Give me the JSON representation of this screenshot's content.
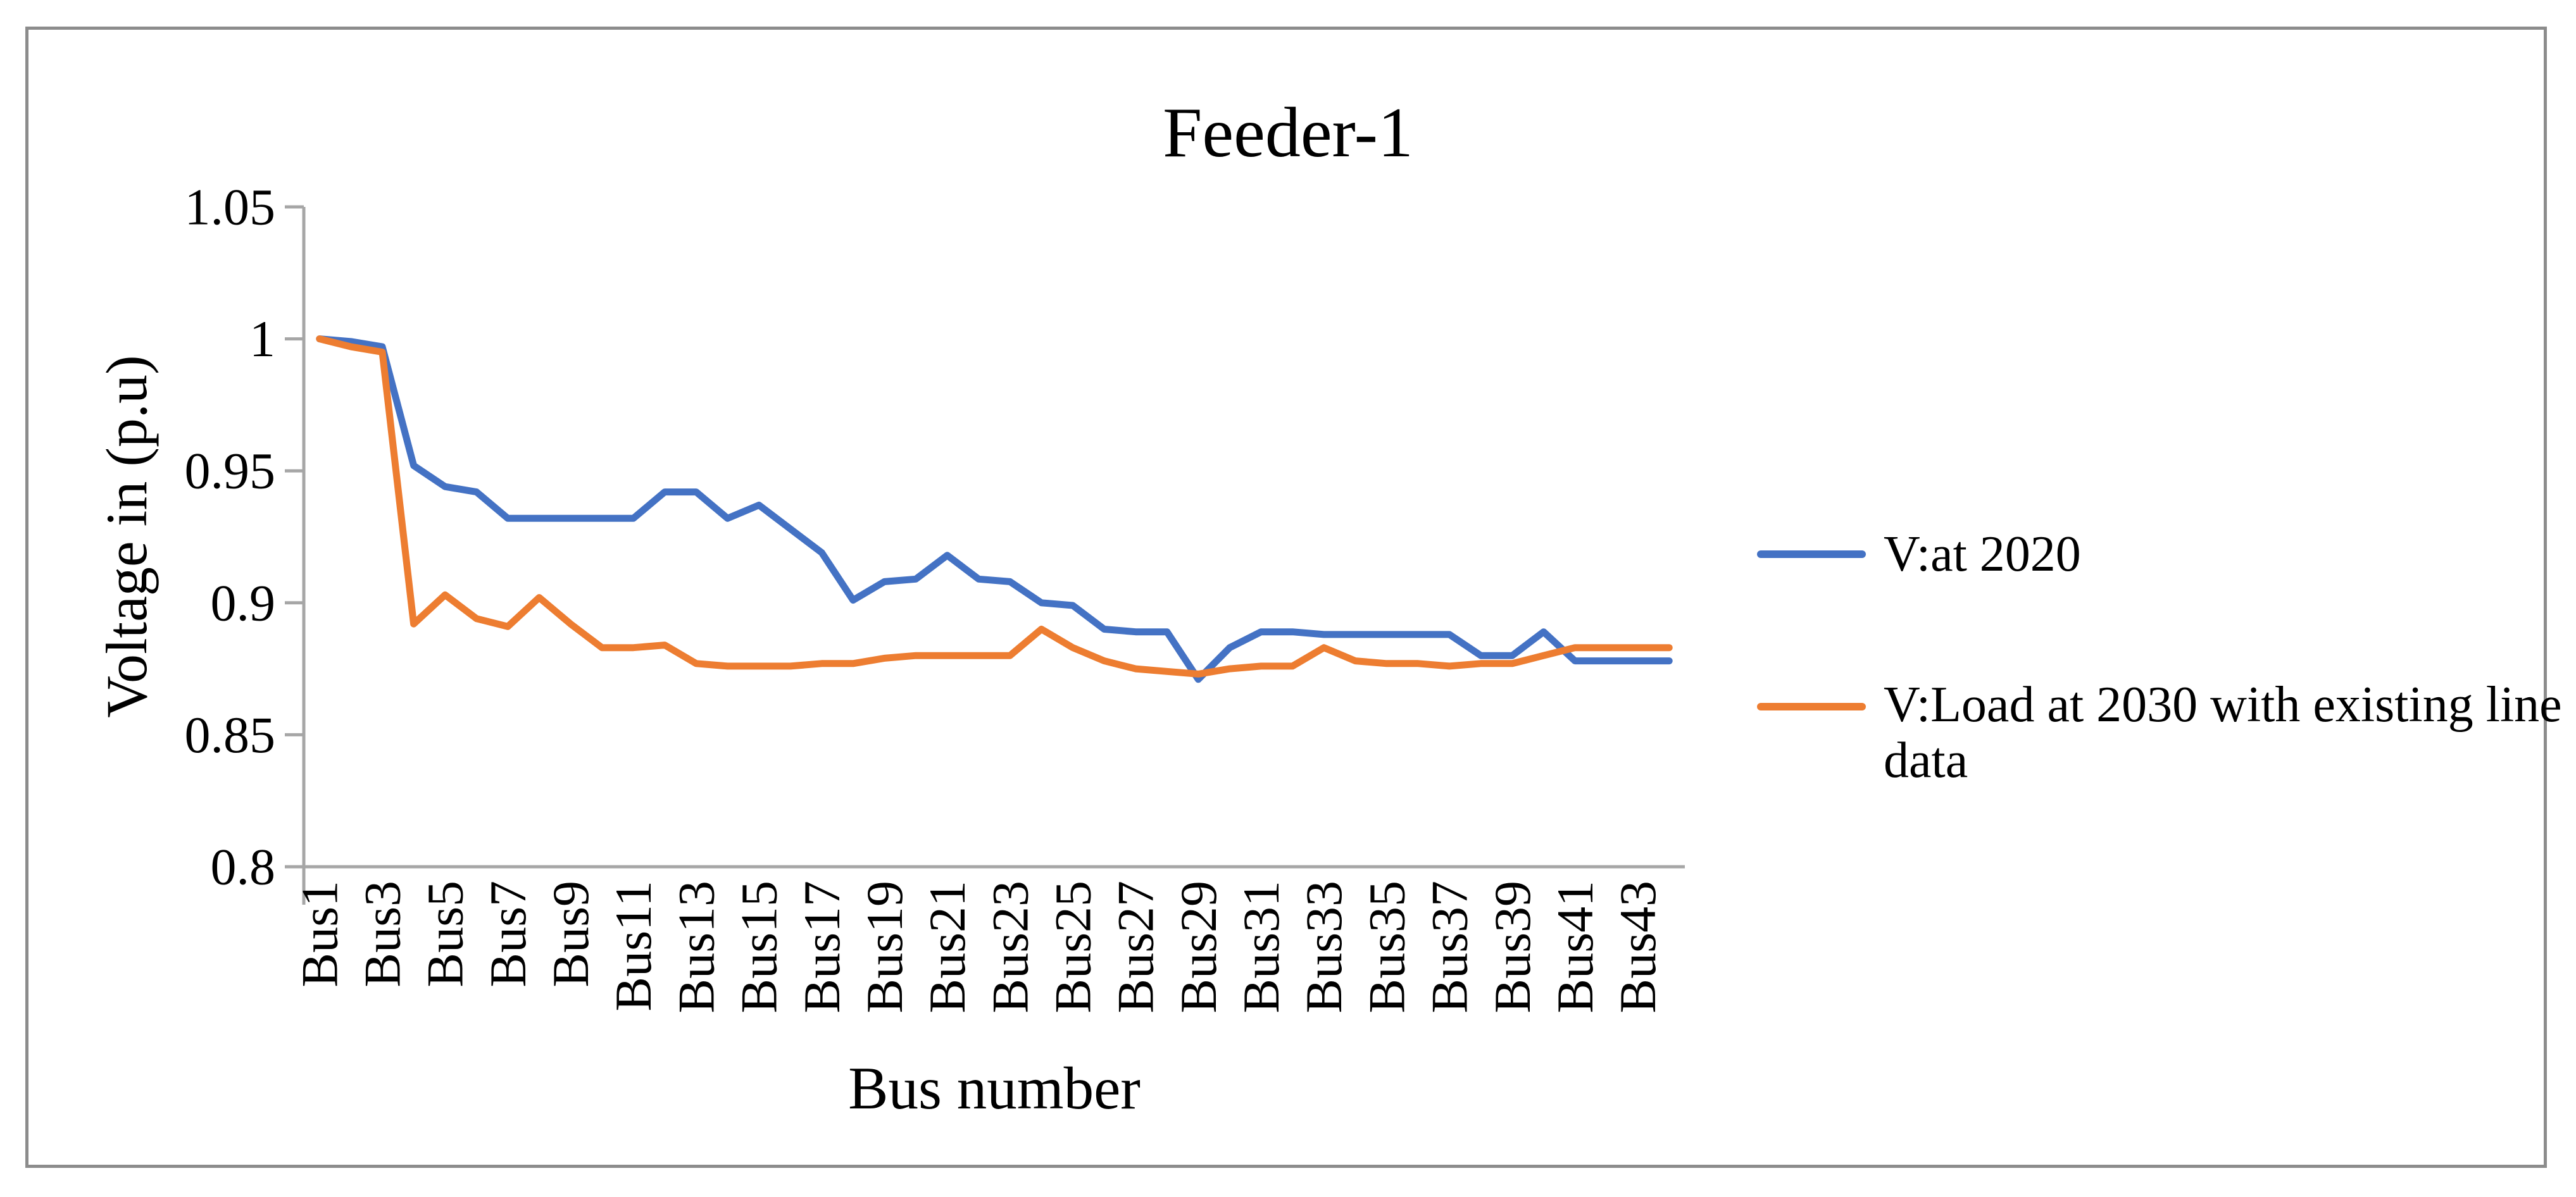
{
  "figure": {
    "border_color": "#8c8c8c",
    "background": "#ffffff"
  },
  "chart_data": {
    "type": "line",
    "title": "Feeder-1",
    "xlabel": "Bus number",
    "ylabel": "Voltage in (p.u)",
    "ylim": [
      0.8,
      1.05
    ],
    "ytick_values": [
      1.05,
      1,
      0.95,
      0.9,
      0.85,
      0.8
    ],
    "ytick_labels": [
      "1.05",
      "1",
      "0.95",
      "0.9",
      "0.85",
      "0.8"
    ],
    "xtick_labels": [
      "Bus1",
      "Bus3",
      "Bus5",
      "Bus7",
      "Bus9",
      "Bus11",
      "Bus13",
      "Bus15",
      "Bus17",
      "Bus19",
      "Bus21",
      "Bus23",
      "Bus25",
      "Bus27",
      "Bus29",
      "Bus31",
      "Bus33",
      "Bus35",
      "Bus37",
      "Bus39",
      "Bus41",
      "Bus43"
    ],
    "x": [
      1,
      2,
      3,
      4,
      5,
      6,
      7,
      8,
      9,
      10,
      11,
      12,
      13,
      14,
      15,
      16,
      17,
      18,
      19,
      20,
      21,
      22,
      23,
      24,
      25,
      26,
      27,
      28,
      29,
      30,
      31,
      32,
      33,
      34,
      35,
      36,
      37,
      38,
      39,
      40,
      41,
      42,
      43,
      44
    ],
    "grid": false,
    "legend_position": "right",
    "axis_color": "#a6a6a6",
    "series": [
      {
        "name": "V:at 2020",
        "color": "#4472C4",
        "values": [
          1.0,
          0.999,
          0.997,
          0.952,
          0.944,
          0.942,
          0.932,
          0.932,
          0.932,
          0.932,
          0.932,
          0.942,
          0.942,
          0.932,
          0.937,
          0.928,
          0.919,
          0.901,
          0.908,
          0.909,
          0.918,
          0.909,
          0.908,
          0.9,
          0.899,
          0.89,
          0.889,
          0.889,
          0.871,
          0.883,
          0.889,
          0.889,
          0.888,
          0.888,
          0.888,
          0.888,
          0.888,
          0.88,
          0.88,
          0.889,
          0.878,
          0.878,
          0.878,
          0.878
        ]
      },
      {
        "name": "V:Load at 2030 with existing line data",
        "color": "#ED7D31",
        "values": [
          1.0,
          0.997,
          0.995,
          0.892,
          0.903,
          0.894,
          0.891,
          0.902,
          0.892,
          0.883,
          0.883,
          0.884,
          0.877,
          0.876,
          0.876,
          0.876,
          0.877,
          0.877,
          0.879,
          0.88,
          0.88,
          0.88,
          0.88,
          0.89,
          0.883,
          0.878,
          0.875,
          0.874,
          0.873,
          0.875,
          0.876,
          0.876,
          0.883,
          0.878,
          0.877,
          0.877,
          0.876,
          0.877,
          0.877,
          0.88,
          0.883,
          0.883,
          0.883,
          0.883
        ]
      }
    ]
  }
}
